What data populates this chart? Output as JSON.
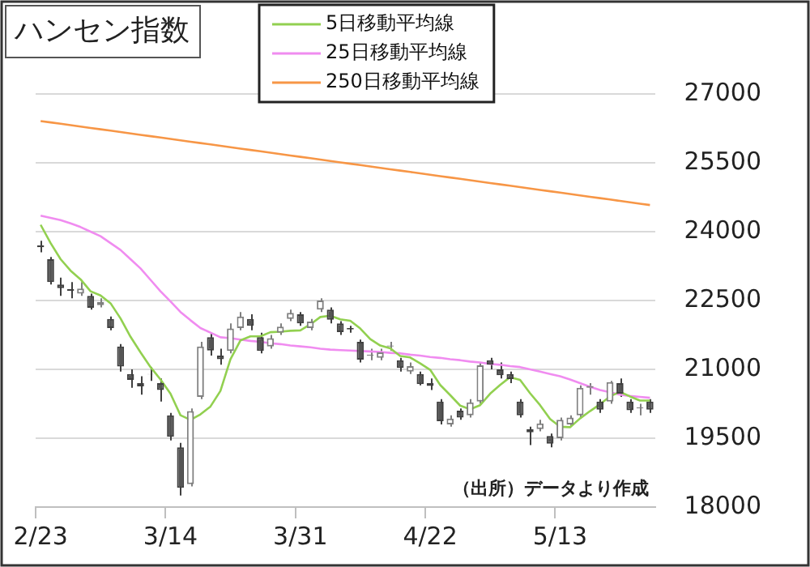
{
  "chart_data": {
    "type": "candlestick",
    "title": "ハンセン指数",
    "categories": [
      "2/23",
      null,
      null,
      null,
      null,
      null,
      null,
      null,
      null,
      null,
      null,
      null,
      null,
      "3/14",
      null,
      null,
      null,
      null,
      null,
      null,
      null,
      null,
      null,
      null,
      null,
      null,
      "3/31",
      null,
      null,
      null,
      null,
      null,
      null,
      null,
      null,
      null,
      null,
      null,
      null,
      "4/22",
      null,
      null,
      null,
      null,
      null,
      null,
      null,
      null,
      null,
      null,
      null,
      null,
      "5/13",
      null,
      null,
      null,
      null,
      null,
      null,
      null,
      null,
      null
    ],
    "ohlc": [
      [
        23700,
        23800,
        23550,
        23660
      ],
      [
        23400,
        23450,
        22850,
        22900
      ],
      [
        22850,
        23000,
        22600,
        22770
      ],
      [
        22750,
        22900,
        22550,
        22710
      ],
      [
        22650,
        22900,
        22600,
        22760
      ],
      [
        22600,
        22650,
        22300,
        22340
      ],
      [
        22400,
        22550,
        22350,
        22470
      ],
      [
        22100,
        22150,
        21850,
        21900
      ],
      [
        21500,
        21550,
        20950,
        21060
      ],
      [
        20900,
        21000,
        20600,
        20770
      ],
      [
        20700,
        20850,
        20450,
        20630
      ],
      [
        20900,
        21050,
        20750,
        20890
      ],
      [
        20700,
        20800,
        20300,
        20550
      ],
      [
        20000,
        20050,
        19450,
        19530
      ],
      [
        19300,
        19400,
        18250,
        18420
      ],
      [
        18500,
        20150,
        18450,
        20090
      ],
      [
        20400,
        21600,
        20350,
        21500
      ],
      [
        21700,
        21800,
        21300,
        21410
      ],
      [
        21300,
        21450,
        21100,
        21220
      ],
      [
        21400,
        22000,
        21350,
        21890
      ],
      [
        21900,
        22250,
        21850,
        22150
      ],
      [
        22100,
        22200,
        21850,
        21950
      ],
      [
        21700,
        21800,
        21350,
        21400
      ],
      [
        21500,
        21750,
        21450,
        21680
      ],
      [
        21800,
        22000,
        21750,
        21930
      ],
      [
        22100,
        22300,
        22050,
        22230
      ],
      [
        22200,
        22250,
        21950,
        22000
      ],
      [
        21900,
        22100,
        21850,
        22040
      ],
      [
        22300,
        22550,
        22250,
        22500
      ],
      [
        22300,
        22350,
        22000,
        22080
      ],
      [
        22000,
        22050,
        21750,
        21810
      ],
      [
        21900,
        21950,
        21800,
        21870
      ],
      [
        21600,
        21650,
        21150,
        21210
      ],
      [
        21300,
        21450,
        21200,
        21320
      ],
      [
        21250,
        21450,
        21200,
        21370
      ],
      [
        21500,
        21600,
        21400,
        21520
      ],
      [
        21200,
        21250,
        20950,
        21030
      ],
      [
        20950,
        21150,
        20900,
        21070
      ],
      [
        20900,
        20950,
        20650,
        20680
      ],
      [
        20700,
        20800,
        20550,
        20640
      ],
      [
        20300,
        20350,
        19800,
        19870
      ],
      [
        19800,
        20000,
        19750,
        19930
      ],
      [
        20100,
        20150,
        19900,
        19950
      ],
      [
        20000,
        20350,
        19950,
        20280
      ],
      [
        20300,
        21150,
        20250,
        21090
      ],
      [
        21200,
        21250,
        21000,
        21100
      ],
      [
        21000,
        21150,
        20800,
        20870
      ],
      [
        20900,
        20950,
        20700,
        20790
      ],
      [
        20300,
        20350,
        19950,
        20000
      ],
      [
        19700,
        19750,
        19350,
        19630
      ],
      [
        19700,
        19900,
        19650,
        19820
      ],
      [
        19550,
        19600,
        19300,
        19380
      ],
      [
        19500,
        19950,
        19450,
        19900
      ],
      [
        19800,
        20000,
        19750,
        19950
      ],
      [
        20000,
        20650,
        19950,
        20600
      ],
      [
        20600,
        20700,
        20450,
        20640
      ],
      [
        20300,
        20350,
        20050,
        20120
      ],
      [
        20300,
        20750,
        20250,
        20720
      ],
      [
        20700,
        20800,
        20400,
        20470
      ],
      [
        20300,
        20350,
        20050,
        20110
      ],
      [
        20150,
        20250,
        20000,
        20170
      ],
      [
        20300,
        20350,
        20050,
        20120
      ]
    ],
    "series": [
      {
        "name": "5日移動平均線",
        "type": "line",
        "color": "#92d050",
        "values": [
          24150,
          23750,
          23400,
          23150,
          22960,
          22700,
          22610,
          22440,
          22110,
          21710,
          21370,
          21050,
          20780,
          20470,
          20000,
          19900,
          20020,
          20190,
          20530,
          21220,
          21630,
          21720,
          21720,
          21810,
          21820,
          21840,
          21850,
          21980,
          22140,
          22170,
          22090,
          22060,
          21890,
          21660,
          21520,
          21460,
          21290,
          21260,
          21130,
          20990,
          20660,
          20440,
          20210,
          20130,
          20220,
          20470,
          20660,
          20830,
          20770,
          20480,
          20220,
          19920,
          19750,
          19740,
          19930,
          20090,
          20240,
          20410,
          20510,
          20410,
          20320,
          20320
        ]
      },
      {
        "name": "25日移動平均線",
        "type": "line",
        "color": "#f08cf0",
        "values": [
          24350,
          24300,
          24250,
          24180,
          24100,
          24000,
          23900,
          23750,
          23600,
          23400,
          23200,
          22950,
          22700,
          22480,
          22250,
          22070,
          21900,
          21800,
          21700,
          21680,
          21650,
          21620,
          21600,
          21570,
          21550,
          21520,
          21500,
          21480,
          21450,
          21430,
          21420,
          21410,
          21400,
          21390,
          21380,
          21360,
          21350,
          21320,
          21300,
          21270,
          21250,
          21220,
          21200,
          21170,
          21150,
          21120,
          21100,
          21070,
          21050,
          21000,
          20950,
          20900,
          20850,
          20780,
          20700,
          20620,
          20550,
          20500,
          20450,
          20420,
          20400,
          20380
        ]
      },
      {
        "name": "250日移動平均線",
        "type": "line",
        "color": "#f79646",
        "values": [
          26410,
          26380,
          26350,
          26320,
          26290,
          26260,
          26230,
          26200,
          26170,
          26140,
          26110,
          26080,
          26050,
          26020,
          25990,
          25960,
          25930,
          25900,
          25870,
          25840,
          25810,
          25780,
          25750,
          25720,
          25690,
          25660,
          25630,
          25600,
          25570,
          25540,
          25510,
          25480,
          25450,
          25420,
          25390,
          25360,
          25330,
          25300,
          25270,
          25240,
          25210,
          25180,
          25150,
          25120,
          25090,
          25060,
          25030,
          25000,
          24970,
          24940,
          24910,
          24880,
          24850,
          24820,
          24790,
          24760,
          24730,
          24700,
          24670,
          24640,
          24610,
          24580
        ]
      }
    ],
    "ylim": [
      18000,
      27000
    ],
    "yticks": [
      18000,
      19500,
      21000,
      22500,
      24000,
      25500,
      27000
    ],
    "grid": "y",
    "legend": "top",
    "marker": "none",
    "annotations": [
      "（出所）データより作成"
    ]
  }
}
